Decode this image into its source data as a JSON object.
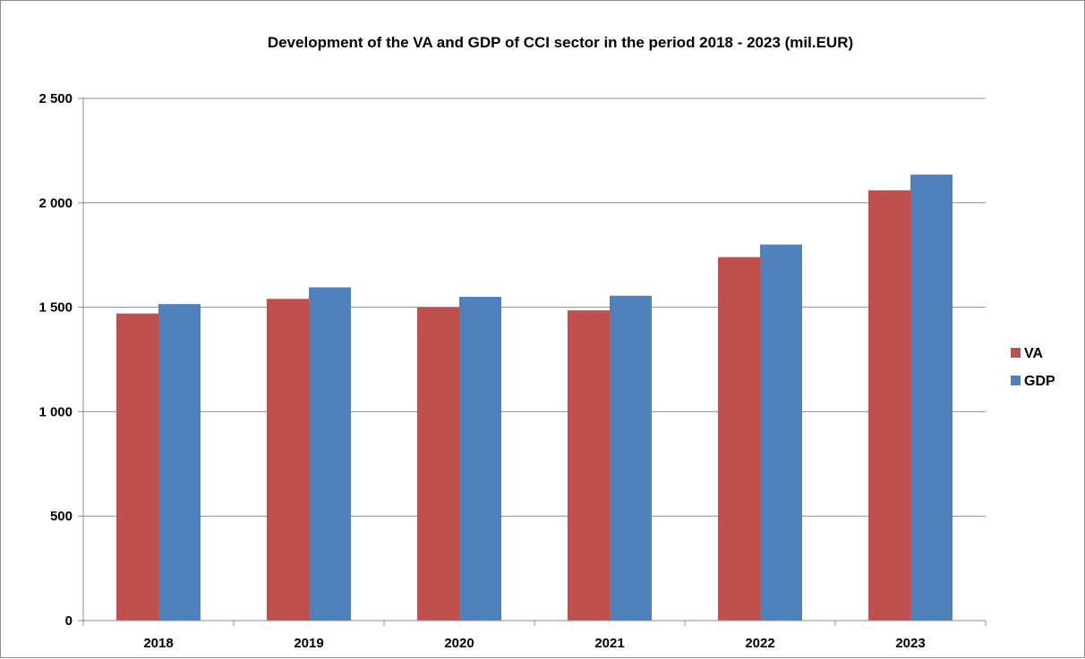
{
  "chart_data": {
    "type": "bar",
    "title": "Development of the VA  and GDP of CCI sector in the period  2018 - 2023 (mil.EUR)",
    "xlabel": "",
    "ylabel": "",
    "categories": [
      "2018",
      "2019",
      "2020",
      "2021",
      "2022",
      "2023"
    ],
    "series": [
      {
        "name": "VA",
        "color": "#c0504d",
        "values": [
          1470,
          1540,
          1500,
          1485,
          1740,
          2060
        ]
      },
      {
        "name": "GDP",
        "color": "#4f81bd",
        "values": [
          1515,
          1595,
          1550,
          1555,
          1800,
          2135
        ]
      }
    ],
    "ylim": [
      0,
      2500
    ],
    "yticks": [
      0,
      500,
      1000,
      1500,
      2000,
      2500
    ],
    "ytick_labels": [
      "0",
      "500",
      "1 000",
      "1 500",
      "2 000",
      "2 500"
    ],
    "grid": true,
    "legend_position": "right"
  }
}
